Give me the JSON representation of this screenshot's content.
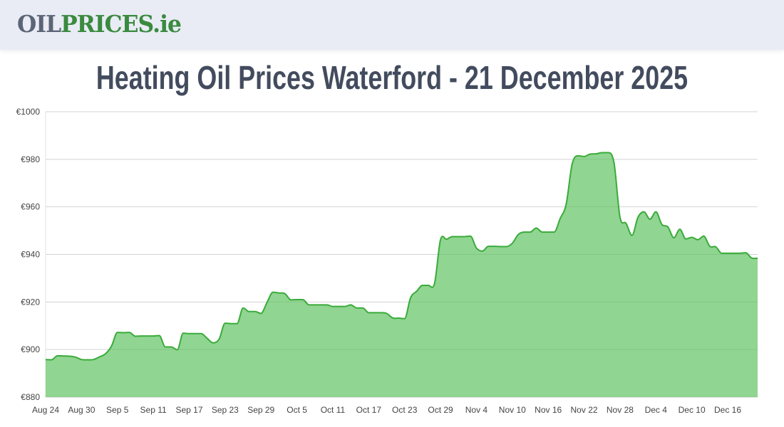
{
  "header": {
    "logo_part1": "OIL",
    "logo_part2": "PRICES.ie"
  },
  "page_title": "Heating Oil Prices Waterford - 21 December 2025",
  "colors": {
    "line": "#3aab3a",
    "fill": "#90d591",
    "title": "#434c5e",
    "logo_gray": "#5b6577",
    "logo_green": "#3a8a3f"
  },
  "chart_data": {
    "type": "area",
    "title": "",
    "xlabel": "",
    "ylabel": "",
    "ylim": [
      880,
      1000
    ],
    "y_ticks": [
      "€880",
      "€900",
      "€920",
      "€940",
      "€960",
      "€980",
      "€1000"
    ],
    "x_ticks": [
      "Aug 24",
      "Aug 30",
      "Sep 5",
      "Sep 11",
      "Sep 17",
      "Sep 23",
      "Sep 29",
      "Oct 5",
      "Oct 11",
      "Oct 17",
      "Oct 23",
      "Oct 29",
      "Nov 4",
      "Nov 10",
      "Nov 16",
      "Nov 22",
      "Nov 28",
      "Dec 4",
      "Dec 10",
      "Dec 16"
    ],
    "grid": true,
    "legend": "none",
    "x": [
      "Aug 24",
      "Aug 25",
      "Aug 26",
      "Aug 27",
      "Aug 28",
      "Aug 29",
      "Aug 30",
      "Aug 31",
      "Sep 1",
      "Sep 2",
      "Sep 3",
      "Sep 4",
      "Sep 5",
      "Sep 6",
      "Sep 7",
      "Sep 8",
      "Sep 9",
      "Sep 10",
      "Sep 11",
      "Sep 12",
      "Sep 13",
      "Sep 14",
      "Sep 15",
      "Sep 16",
      "Sep 17",
      "Sep 18",
      "Sep 19",
      "Sep 20",
      "Sep 21",
      "Sep 22",
      "Sep 23",
      "Sep 24",
      "Sep 25",
      "Sep 26",
      "Sep 27",
      "Sep 28",
      "Sep 29",
      "Sep 30",
      "Oct 1",
      "Oct 2",
      "Oct 3",
      "Oct 4",
      "Oct 5",
      "Oct 6",
      "Oct 7",
      "Oct 8",
      "Oct 9",
      "Oct 10",
      "Oct 11",
      "Oct 12",
      "Oct 13",
      "Oct 14",
      "Oct 15",
      "Oct 16",
      "Oct 17",
      "Oct 18",
      "Oct 19",
      "Oct 20",
      "Oct 21",
      "Oct 22",
      "Oct 23",
      "Oct 24",
      "Oct 25",
      "Oct 26",
      "Oct 27",
      "Oct 28",
      "Oct 29",
      "Oct 30",
      "Oct 31",
      "Nov 1",
      "Nov 2",
      "Nov 3",
      "Nov 4",
      "Nov 5",
      "Nov 6",
      "Nov 7",
      "Nov 8",
      "Nov 9",
      "Nov 10",
      "Nov 11",
      "Nov 12",
      "Nov 13",
      "Nov 14",
      "Nov 15",
      "Nov 16",
      "Nov 17",
      "Nov 18",
      "Nov 19",
      "Nov 20",
      "Nov 21",
      "Nov 22",
      "Nov 23",
      "Nov 24",
      "Nov 25",
      "Nov 26",
      "Nov 27",
      "Nov 28",
      "Nov 29",
      "Nov 30",
      "Dec 1",
      "Dec 2",
      "Dec 3",
      "Dec 4",
      "Dec 5",
      "Dec 6",
      "Dec 7",
      "Dec 8",
      "Dec 9",
      "Dec 10",
      "Dec 11",
      "Dec 12",
      "Dec 13",
      "Dec 14",
      "Dec 15",
      "Dec 16",
      "Dec 17",
      "Dec 18",
      "Dec 19",
      "Dec 20",
      "Dec 21"
    ],
    "values": [
      895.8,
      895.7,
      897.4,
      897.3,
      897.2,
      896.8,
      895.8,
      895.7,
      895.8,
      896.9,
      898.2,
      901.4,
      907.2,
      907.1,
      907.2,
      905.6,
      905.7,
      905.7,
      905.7,
      905.9,
      901.1,
      901.1,
      899.9,
      906.9,
      906.7,
      906.7,
      906.7,
      904.7,
      902.8,
      904.4,
      911.1,
      910.9,
      910.9,
      917.5,
      916.0,
      916.0,
      915.2,
      919.8,
      924.1,
      923.8,
      923.5,
      920.9,
      921.0,
      921.0,
      918.8,
      918.8,
      918.8,
      918.8,
      918.1,
      918.1,
      918.1,
      918.8,
      917.5,
      917.5,
      915.5,
      915.5,
      915.5,
      915.2,
      913.3,
      913.2,
      913.0,
      921.8,
      924.5,
      927.0,
      927.0,
      927.8,
      946.2,
      946.4,
      947.5,
      947.5,
      947.5,
      947.7,
      942.7,
      941.4,
      943.4,
      943.4,
      943.3,
      943.3,
      944.7,
      948.4,
      949.4,
      949.4,
      951.1,
      949.4,
      949.4,
      949.4,
      955.1,
      961.1,
      978.0,
      981.5,
      981.2,
      982.2,
      982.3,
      982.8,
      982.8,
      978.5,
      955.6,
      953.1,
      948.0,
      955.6,
      957.9,
      954.8,
      957.9,
      952.6,
      951.6,
      947.0,
      950.6,
      946.5,
      947.2,
      946.2,
      947.7,
      943.4,
      943.2,
      940.5,
      940.5,
      940.5,
      940.5,
      940.7,
      938.5,
      938.4
    ]
  }
}
